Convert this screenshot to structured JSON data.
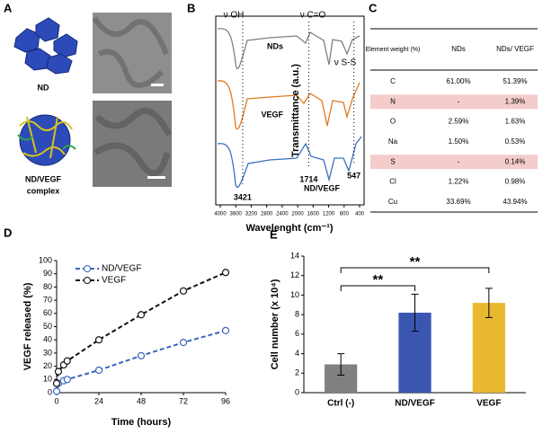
{
  "panel_labels": [
    "A",
    "B",
    "C",
    "D",
    "E"
  ],
  "panel_a": {
    "nd_label": "ND",
    "complex_label": [
      "ND/VEGF",
      "complex"
    ]
  },
  "panel_b": {
    "y_label": "Transmittance (a.u.)",
    "x_label": "Wavelenght (cm⁻¹)",
    "xlim": [
      4000,
      400
    ],
    "xticks": [
      4000,
      3600,
      3200,
      2800,
      2400,
      2000,
      1600,
      1200,
      800,
      400
    ],
    "peaks": [
      "ν OH",
      "ν C=O",
      "ν S-S"
    ],
    "curve_labels": [
      "NDs",
      "VEGF",
      "ND/VEGF"
    ],
    "wavenumbers": [
      3421,
      1714,
      547
    ]
  },
  "table": {
    "header": [
      "Element weight (%)",
      "NDs",
      "NDs/ VEGF"
    ],
    "rows": [
      [
        "C",
        "61.00%",
        "51.39%"
      ],
      [
        "N",
        "-",
        "1.39%"
      ],
      [
        "O",
        "2.59%",
        "1.63%"
      ],
      [
        "Na",
        "1.50%",
        "0.53%"
      ],
      [
        "S",
        "-",
        "0.14%"
      ],
      [
        "Cl",
        "1.22%",
        "0.98%"
      ],
      [
        "Cu",
        "33.69%",
        "43.94%"
      ]
    ]
  },
  "chart_data": [
    {
      "type": "line",
      "x_label": "Time (hours)",
      "y_label": "VEGF released (%)",
      "x": [
        0,
        1,
        4,
        6,
        24,
        48,
        72,
        96
      ],
      "series": [
        {
          "name": "ND/VEGF",
          "color": "#3a64c0",
          "values": [
            1,
            7,
            9,
            10,
            17,
            28,
            38,
            47
          ]
        },
        {
          "name": "VEGF",
          "color": "#111111",
          "values": [
            7,
            16,
            21,
            24,
            40,
            59,
            77,
            91
          ]
        }
      ],
      "xlim": [
        0,
        96
      ],
      "xticks": [
        0,
        24,
        48,
        72,
        96
      ],
      "ylim": [
        0,
        100
      ],
      "yticks": [
        0,
        10,
        20,
        30,
        40,
        50,
        60,
        70,
        80,
        90,
        100
      ],
      "legend": "upper left"
    },
    {
      "type": "bar",
      "y_label": "Cell number (x 10⁴)",
      "categories": [
        "Ctrl (-)",
        "ND/VEGF",
        "VEGF"
      ],
      "values": [
        2.9,
        8.2,
        9.2
      ],
      "errors": [
        1.1,
        1.9,
        1.5
      ],
      "colors": [
        "#808080",
        "#3a56b0",
        "#e8b830"
      ],
      "ylim": [
        0,
        14
      ],
      "yticks": [
        0,
        2,
        4,
        6,
        8,
        10,
        12,
        14
      ],
      "annotations": [
        "**",
        "**"
      ]
    }
  ]
}
